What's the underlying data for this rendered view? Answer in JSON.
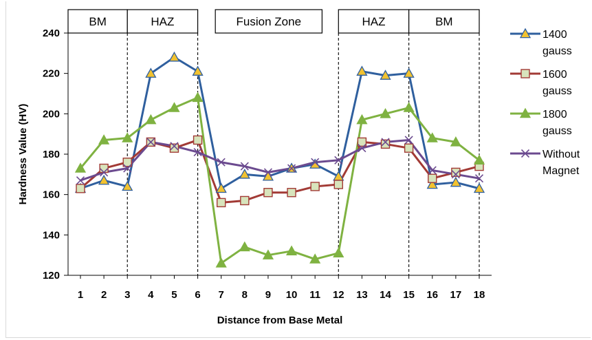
{
  "chart_data": {
    "type": "line",
    "title": "",
    "xlabel": "Distance from Base Metal",
    "ylabel": "Hardness Value (HV)",
    "x": [
      1,
      2,
      3,
      4,
      5,
      6,
      7,
      8,
      9,
      10,
      11,
      12,
      13,
      14,
      15,
      16,
      17,
      18
    ],
    "ylim": [
      120,
      240
    ],
    "yticks": [
      120,
      140,
      160,
      180,
      200,
      220,
      240
    ],
    "grid": false,
    "legend_position": "right",
    "zones": [
      {
        "label": "BM",
        "from": 0.55,
        "to": 3
      },
      {
        "label": "HAZ",
        "from": 3,
        "to": 6
      },
      {
        "label": "Fusion Zone",
        "from": 6.75,
        "to": 11.3
      },
      {
        "label": "HAZ",
        "from": 12,
        "to": 15
      },
      {
        "label": "BM",
        "from": 15,
        "to": 18
      }
    ],
    "dividers_at": [
      3,
      6,
      12,
      15,
      18
    ],
    "series": [
      {
        "name": "1400 gauss",
        "legend_lines": [
          "1400",
          "gauss"
        ],
        "color": "#2f5f9e",
        "marker": "triangle",
        "marker_fill": "#f2c230",
        "values": [
          163,
          167,
          164,
          220,
          228,
          221,
          163,
          170,
          169,
          173,
          175,
          169,
          221,
          219,
          220,
          165,
          166,
          163
        ]
      },
      {
        "name": "1600 gauss",
        "legend_lines": [
          "1600",
          "gauss"
        ],
        "color": "#a23a35",
        "marker": "square",
        "marker_fill": "#d8e4bc",
        "values": [
          163,
          173,
          176,
          186,
          183,
          187,
          156,
          157,
          161,
          161,
          164,
          165,
          186,
          185,
          183,
          168,
          171,
          174
        ]
      },
      {
        "name": "1800 gauss",
        "legend_lines": [
          "1800",
          "gauss"
        ],
        "color": "#7fb241",
        "marker": "triangle",
        "marker_fill": "#7fb241",
        "values": [
          173,
          187,
          188,
          197,
          203,
          208,
          126,
          134,
          130,
          132,
          128,
          131,
          197,
          200,
          203,
          188,
          186,
          177
        ]
      },
      {
        "name": "Without Magnet",
        "legend_lines": [
          "Without",
          "Magnet"
        ],
        "color": "#6b4a8f",
        "marker": "cross",
        "marker_fill": "#6b4a8f",
        "values": [
          167,
          171,
          173,
          186,
          184,
          181,
          176,
          174,
          171,
          173,
          176,
          177,
          183,
          186,
          187,
          172,
          170,
          168
        ]
      }
    ]
  }
}
